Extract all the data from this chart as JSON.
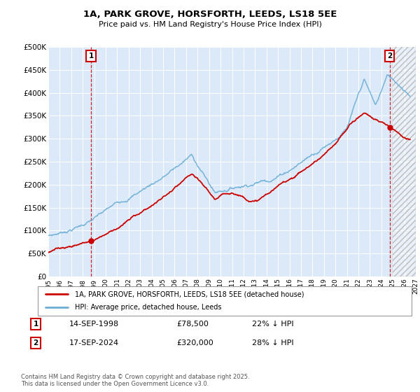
{
  "title": "1A, PARK GROVE, HORSFORTH, LEEDS, LS18 5EE",
  "subtitle": "Price paid vs. HM Land Registry's House Price Index (HPI)",
  "xlim": [
    1995,
    2027
  ],
  "ylim": [
    0,
    500000
  ],
  "yticks": [
    0,
    50000,
    100000,
    150000,
    200000,
    250000,
    300000,
    350000,
    400000,
    450000,
    500000
  ],
  "ytick_labels": [
    "£0",
    "£50K",
    "£100K",
    "£150K",
    "£200K",
    "£250K",
    "£300K",
    "£350K",
    "£400K",
    "£450K",
    "£500K"
  ],
  "bg_color": "#dce9f8",
  "grid_color": "#ffffff",
  "hpi_color": "#6baed6",
  "price_color": "#cc0000",
  "sale1_x": 1998.72,
  "sale1_y": 78500,
  "sale1_label": "1",
  "sale1_date": "14-SEP-1998",
  "sale1_price": "£78,500",
  "sale1_note": "22% ↓ HPI",
  "sale2_x": 2024.72,
  "sale2_y": 320000,
  "sale2_label": "2",
  "sale2_date": "17-SEP-2024",
  "sale2_price": "£320,000",
  "sale2_note": "28% ↓ HPI",
  "legend_price_label": "1A, PARK GROVE, HORSFORTH, LEEDS, LS18 5EE (detached house)",
  "legend_hpi_label": "HPI: Average price, detached house, Leeds",
  "footer": "Contains HM Land Registry data © Crown copyright and database right 2025.\nThis data is licensed under the Open Government Licence v3.0."
}
